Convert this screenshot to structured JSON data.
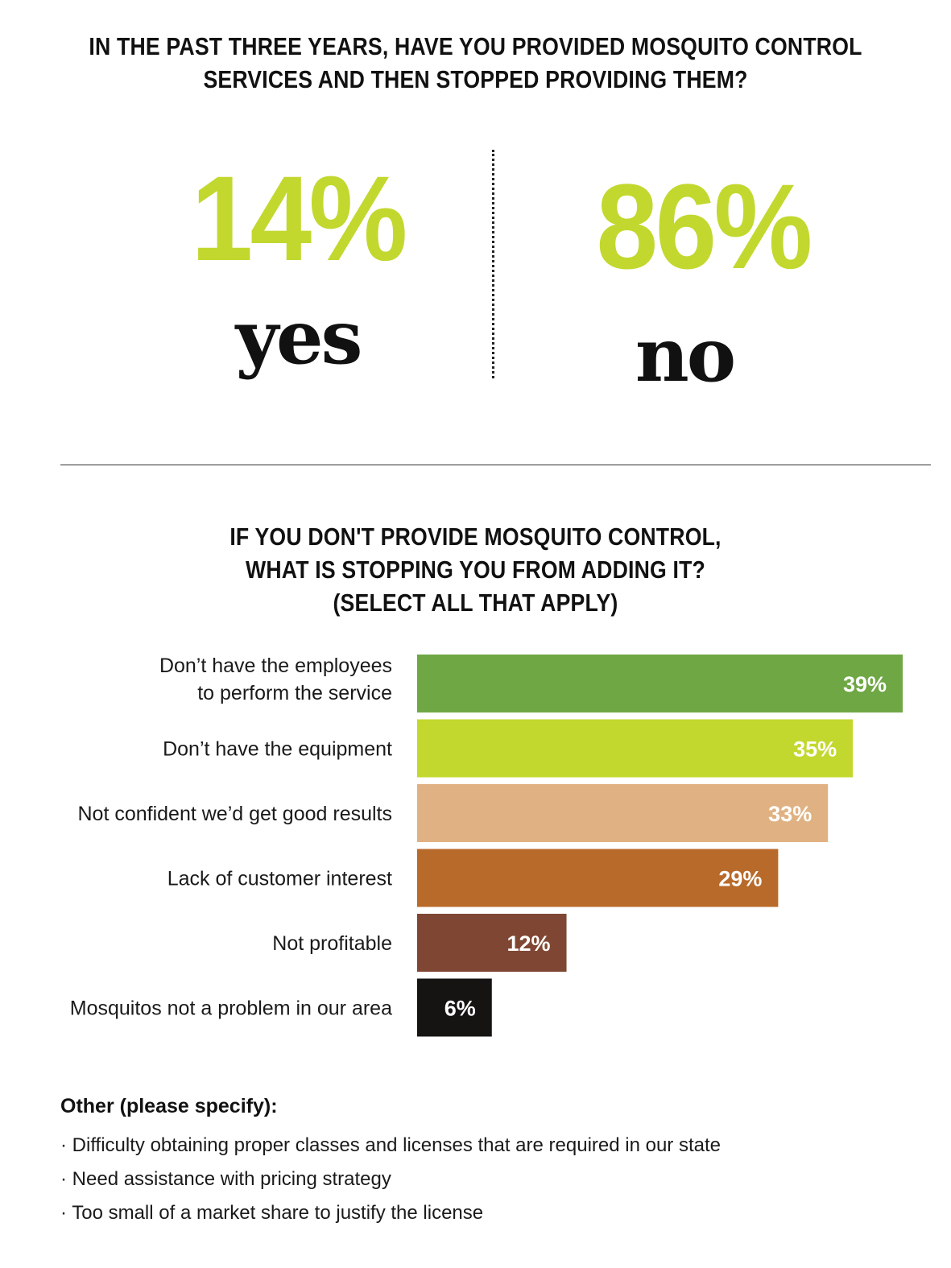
{
  "q1": {
    "title_line1": "IN THE PAST THREE YEARS, HAVE YOU PROVIDED MOSQUITO CONTROL",
    "title_line2": "SERVICES AND THEN STOPPED PROVIDING THEM?",
    "yes": {
      "value": "14%",
      "label": "yes"
    },
    "no": {
      "value": "86%",
      "label": "no"
    }
  },
  "q2": {
    "title_line1": "IF YOU DON'T PROVIDE MOSQUITO CONTROL,",
    "title_line2": "WHAT IS STOPPING YOU FROM ADDING IT?",
    "title_line3": "(SELECT ALL THAT APPLY)"
  },
  "chart_data": {
    "type": "bar",
    "orientation": "horizontal",
    "categories": [
      [
        "Don’t have the employees",
        "to perform the service"
      ],
      [
        "Don’t have the equipment"
      ],
      [
        "Not confident we’d get good results"
      ],
      [
        "Lack of customer interest"
      ],
      [
        "Not profitable"
      ],
      [
        "Mosquitos not a problem in our area"
      ]
    ],
    "values": [
      39,
      35,
      33,
      29,
      12,
      6
    ],
    "value_labels": [
      "39%",
      "35%",
      "33%",
      "29%",
      "12%",
      "6%"
    ],
    "colors": [
      "#6ea744",
      "#c2d82e",
      "#e0b283",
      "#b86a2a",
      "#7f4733",
      "#161412"
    ],
    "xlim": [
      0,
      39
    ],
    "grid": false,
    "legend": "none"
  },
  "other": {
    "title": "Other (please specify):",
    "items": [
      "· Difficulty obtaining proper classes and licenses that are required in our state",
      "· Need assistance with pricing strategy",
      "· Too small of a market share to justify the license"
    ]
  }
}
